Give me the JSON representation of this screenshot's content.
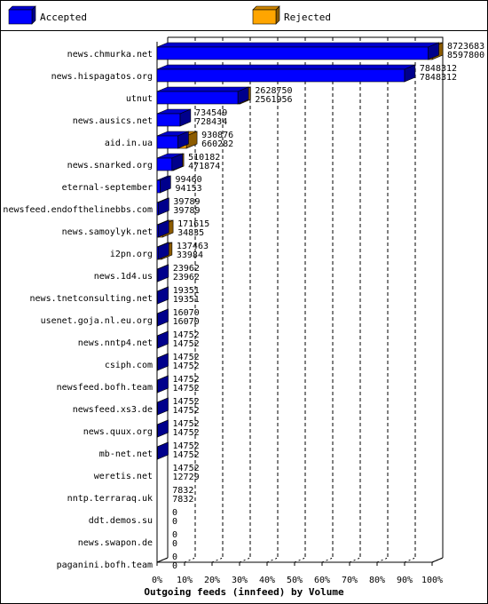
{
  "chart_data": {
    "type": "bar",
    "orientation": "horizontal",
    "stacked": false,
    "three_d": true,
    "title": "Outgoing feeds (innfeed) by Volume",
    "legend_placement": "top",
    "x_ticks": [
      "0%",
      "10%",
      "20%",
      "30%",
      "40%",
      "50%",
      "60%",
      "70%",
      "80%",
      "90%",
      "100%"
    ],
    "xlim": [
      0,
      100
    ],
    "grid": true,
    "colors": {
      "accepted": "#0000ff",
      "rejected": "#ffa500"
    },
    "series": [
      {
        "name": "Accepted",
        "key": "accepted"
      },
      {
        "name": "Rejected",
        "key": "rejected"
      }
    ],
    "categories": [
      "news.chmurka.net",
      "news.hispagatos.org",
      "utnut",
      "news.ausics.net",
      "aid.in.ua",
      "news.snarked.org",
      "eternal-september",
      "newsfeed.endofthelinebbs.com",
      "news.samoylyk.net",
      "i2pn.org",
      "news.1d4.us",
      "news.tnetconsulting.net",
      "usenet.goja.nl.eu.org",
      "news.nntp4.net",
      "csiph.com",
      "newsfeed.bofh.team",
      "newsfeed.xs3.de",
      "news.quux.org",
      "mb-net.net",
      "weretis.net",
      "nntp.terraraq.uk",
      "ddt.demos.su",
      "news.swapon.de",
      "paganini.bofh.team"
    ],
    "offered": [
      "8723683",
      "7848312",
      "2628750",
      "734549",
      "930876",
      "510182",
      "99460",
      "39789",
      "171615",
      "137463",
      "23962",
      "19351",
      "16070",
      "14752",
      "14752",
      "14752",
      "14752",
      "14752",
      "14752",
      "14752",
      "7832",
      "0",
      "0",
      "0"
    ],
    "accepted": [
      "8597800",
      "7848312",
      "2561956",
      "728434",
      "660282",
      "471874",
      "94153",
      "39789",
      "34835",
      "33984",
      "23962",
      "19351",
      "16070",
      "14752",
      "14752",
      "14752",
      "14752",
      "14752",
      "14752",
      "12729",
      "7832",
      "0",
      "0",
      "0"
    ],
    "max_value": 8723683
  }
}
